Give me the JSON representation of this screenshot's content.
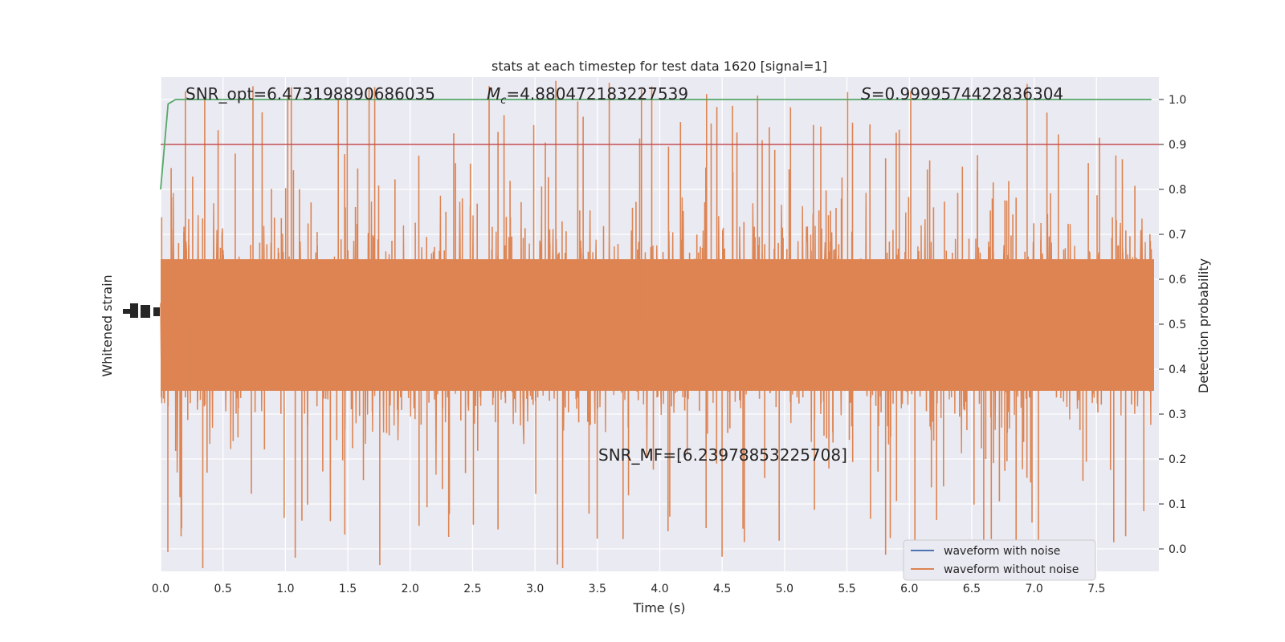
{
  "chart_data": {
    "type": "line",
    "title": "stats at each timestep for test data 1620 [signal=1]",
    "xlabel": "Time (s)",
    "ylabel_left": "Whitened strain",
    "ylabel_right": "Detection probability",
    "xlim": [
      0.0,
      8.0
    ],
    "ylim_right": [
      -0.05,
      1.05
    ],
    "xticks": [
      "0.0",
      "0.5",
      "1.0",
      "1.5",
      "2.0",
      "2.5",
      "3.0",
      "3.5",
      "4.0",
      "4.5",
      "5.0",
      "5.5",
      "6.0",
      "6.5",
      "7.0",
      "7.5"
    ],
    "xtick_values": [
      0.0,
      0.5,
      1.0,
      1.5,
      2.0,
      2.5,
      3.0,
      3.5,
      4.0,
      4.5,
      5.0,
      5.5,
      6.0,
      6.5,
      7.0,
      7.5
    ],
    "yticks_right": [
      "0.0",
      "0.1",
      "0.2",
      "0.3",
      "0.4",
      "0.5",
      "0.6",
      "0.7",
      "0.8",
      "0.9",
      "1.0"
    ],
    "ytick_right_values": [
      0.0,
      0.1,
      0.2,
      0.3,
      0.4,
      0.5,
      0.6,
      0.7,
      0.8,
      0.9,
      1.0
    ],
    "grid": true,
    "legend_placement": "lower-right",
    "annotations": {
      "snr_opt": "SNR_opt=6.473198890686035",
      "mc_symbol": "M",
      "mc_sub": "c",
      "mc_value": "=4.880472183227539",
      "s_symbol": "S",
      "s_value": "=0.9999574422836304",
      "snr_mf": "SNR_MF=[6.239788532257​08]"
    },
    "series": [
      {
        "name": "waveform with noise",
        "color": "#4c72b0"
      },
      {
        "name": "waveform without noise",
        "color": "#dd8452"
      }
    ],
    "detection_probability": {
      "color": "#55a868",
      "x": [
        0.0,
        0.06,
        0.12,
        7.94
      ],
      "y": [
        0.8,
        0.99,
        1.0,
        1.0
      ]
    },
    "threshold": {
      "color": "#c44e52",
      "value": 0.9
    }
  }
}
